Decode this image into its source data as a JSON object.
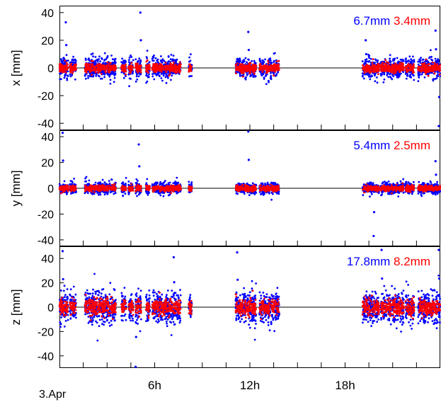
{
  "chart_data": [
    {
      "type": "scatter",
      "ylabel": "x [mm]",
      "ylim": [
        -45,
        45
      ],
      "yticks": [
        40,
        20,
        0,
        -20,
        -40
      ],
      "annotations": [
        {
          "text": "6.7mm",
          "color": "#0000ff"
        },
        {
          "text": "3.4mm",
          "color": "#ff0000"
        }
      ],
      "series_colors": [
        "#0000ff",
        "#ff0000"
      ],
      "amplitude": {
        "blue": 10.0,
        "red": 4.5
      },
      "spikes": [
        {
          "time_h": 0.4,
          "blue": 33
        },
        {
          "time_h": 5.1,
          "blue": 40
        },
        {
          "time_h": 11.9,
          "blue": 26
        },
        {
          "time_h": 19.3,
          "blue": 20
        },
        {
          "time_h": 23.7,
          "blue": 27
        },
        {
          "time_h": 23.9,
          "blue": -42
        }
      ]
    },
    {
      "type": "scatter",
      "ylabel": "y [mm]",
      "ylim": [
        -45,
        45
      ],
      "yticks": [
        40,
        20,
        0,
        -20,
        -40
      ],
      "annotations": [
        {
          "text": "5.4mm",
          "color": "#0000ff"
        },
        {
          "text": "2.5mm",
          "color": "#ff0000"
        }
      ],
      "series_colors": [
        "#0000ff",
        "#ff0000"
      ],
      "amplitude": {
        "blue": 6.0,
        "red": 3.0
      },
      "spikes": [
        {
          "time_h": 0.2,
          "blue": 43
        },
        {
          "time_h": 5.0,
          "blue": 34
        },
        {
          "time_h": 11.9,
          "blue": 44
        },
        {
          "time_h": 19.8,
          "blue": -37
        },
        {
          "time_h": 23.7,
          "blue": 21
        }
      ]
    },
    {
      "type": "scatter",
      "ylabel": "z [mm]",
      "ylim": [
        -50,
        50
      ],
      "yticks": [
        40,
        20,
        0,
        -20,
        -40
      ],
      "annotations": [
        {
          "text": "17.8mm",
          "color": "#0000ff"
        },
        {
          "text": "8.2mm",
          "color": "#ff0000"
        }
      ],
      "series_colors": [
        "#0000ff",
        "#ff0000"
      ],
      "amplitude": {
        "blue": 18.0,
        "red": 9.0
      },
      "spikes": [
        {
          "time_h": 0.2,
          "blue": 46
        },
        {
          "time_h": 4.8,
          "blue": -49
        },
        {
          "time_h": 7.2,
          "blue": 41
        },
        {
          "time_h": 11.2,
          "blue": 45
        },
        {
          "time_h": 20.3,
          "blue": 47
        },
        {
          "time_h": 23.9,
          "blue": 47
        }
      ]
    }
  ],
  "time_axis": {
    "start_label": "3.Apr",
    "range_hours": [
      0,
      24
    ],
    "tick_labels": [
      {
        "time_h": 6,
        "label": "6h"
      },
      {
        "time_h": 12,
        "label": "12h"
      },
      {
        "time_h": 18,
        "label": "18h"
      }
    ],
    "minor_tick_hours": [
      1.5,
      3,
      4.5,
      7.5,
      9,
      10.5,
      13.5,
      15,
      16.5,
      19.5,
      21,
      22.5
    ]
  },
  "data_segments_h": [
    [
      0.0,
      0.55
    ],
    [
      0.65,
      1.05
    ],
    [
      1.6,
      3.55
    ],
    [
      3.9,
      4.2
    ],
    [
      4.35,
      4.65
    ],
    [
      4.8,
      5.15
    ],
    [
      5.45,
      5.7
    ],
    [
      5.85,
      7.65
    ],
    [
      8.15,
      8.35
    ],
    [
      11.1,
      12.4
    ],
    [
      12.6,
      13.85
    ],
    [
      19.1,
      20.15
    ],
    [
      20.25,
      21.7
    ],
    [
      21.8,
      22.35
    ],
    [
      22.6,
      24.0
    ]
  ]
}
